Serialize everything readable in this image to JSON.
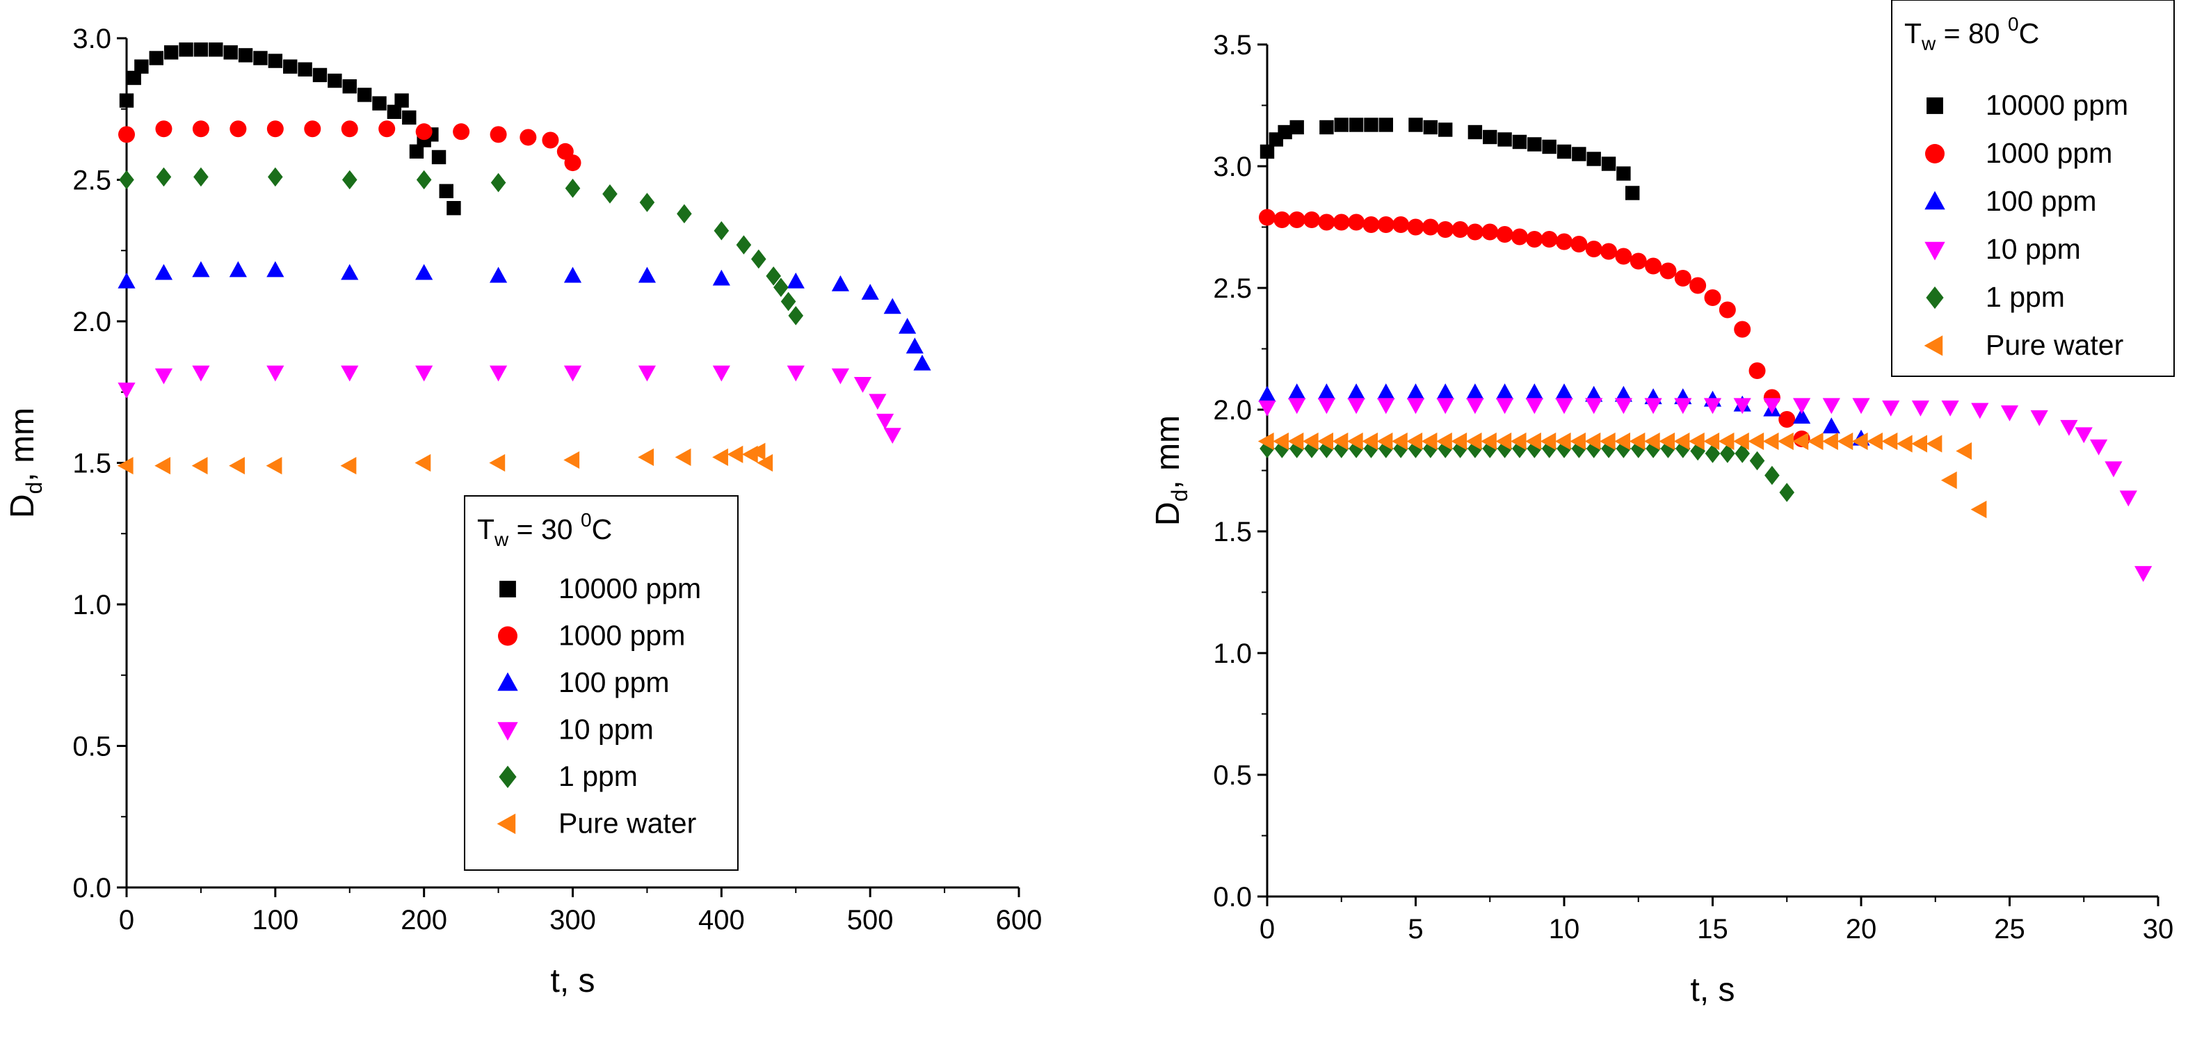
{
  "chart_data": [
    {
      "type": "scatter",
      "title": "",
      "xlabel": "t, s",
      "ylabel_main": "D",
      "ylabel_sub": "d",
      "ylabel_tail": ", mm",
      "xlim": [
        0,
        600
      ],
      "ylim": [
        0,
        3.0
      ],
      "xticks": [
        0,
        100,
        200,
        300,
        400,
        500,
        600
      ],
      "yticks": [
        0.0,
        0.5,
        1.0,
        1.5,
        2.0,
        2.5,
        3.0
      ],
      "xtick_labels": [
        "0",
        "100",
        "200",
        "300",
        "400",
        "500",
        "600"
      ],
      "ytick_labels": [
        "0.0",
        "0.5",
        "1.0",
        "1.5",
        "2.0",
        "2.5",
        "3.0"
      ],
      "legend_position": "lower-center",
      "legend_title_main": "T",
      "legend_title_sub": "w",
      "legend_title_mid": " = 30 ",
      "legend_title_sup": "0",
      "legend_title_tail": "C",
      "series": [
        {
          "name": "10000 ppm",
          "marker": "square",
          "color": "#000000",
          "x": [
            0,
            5,
            10,
            20,
            30,
            40,
            50,
            60,
            70,
            80,
            90,
            100,
            110,
            120,
            130,
            140,
            150,
            160,
            170,
            180,
            185,
            190,
            195,
            200,
            205,
            210,
            215,
            220
          ],
          "y": [
            2.78,
            2.86,
            2.9,
            2.93,
            2.95,
            2.96,
            2.96,
            2.96,
            2.95,
            2.94,
            2.93,
            2.92,
            2.9,
            2.89,
            2.87,
            2.85,
            2.83,
            2.8,
            2.77,
            2.74,
            2.78,
            2.72,
            2.6,
            2.64,
            2.66,
            2.58,
            2.46,
            2.4
          ]
        },
        {
          "name": "1000 ppm",
          "marker": "circle",
          "color": "#ff0000",
          "x": [
            0,
            25,
            50,
            75,
            100,
            125,
            150,
            175,
            200,
            225,
            250,
            270,
            285,
            295,
            300
          ],
          "y": [
            2.66,
            2.68,
            2.68,
            2.68,
            2.68,
            2.68,
            2.68,
            2.68,
            2.67,
            2.67,
            2.66,
            2.65,
            2.64,
            2.6,
            2.56
          ]
        },
        {
          "name": "100 ppm",
          "marker": "triangle-up",
          "color": "#0000ff",
          "x": [
            0,
            25,
            50,
            75,
            100,
            150,
            200,
            250,
            300,
            350,
            400,
            450,
            480,
            500,
            515,
            525,
            530,
            535
          ],
          "y": [
            2.14,
            2.17,
            2.18,
            2.18,
            2.18,
            2.17,
            2.17,
            2.16,
            2.16,
            2.16,
            2.15,
            2.14,
            2.13,
            2.1,
            2.05,
            1.98,
            1.91,
            1.85
          ]
        },
        {
          "name": "10 ppm",
          "marker": "triangle-down",
          "color": "#ff00ff",
          "x": [
            0,
            25,
            50,
            100,
            150,
            200,
            250,
            300,
            350,
            400,
            450,
            480,
            495,
            505,
            510,
            515
          ],
          "y": [
            1.76,
            1.81,
            1.82,
            1.82,
            1.82,
            1.82,
            1.82,
            1.82,
            1.82,
            1.82,
            1.82,
            1.81,
            1.78,
            1.72,
            1.65,
            1.6
          ]
        },
        {
          "name": "1 ppm",
          "marker": "diamond",
          "color": "#1a6e1a",
          "x": [
            0,
            25,
            50,
            100,
            150,
            200,
            250,
            300,
            325,
            350,
            375,
            400,
            415,
            425,
            435,
            440,
            445,
            450
          ],
          "y": [
            2.5,
            2.51,
            2.51,
            2.51,
            2.5,
            2.5,
            2.49,
            2.47,
            2.45,
            2.42,
            2.38,
            2.32,
            2.27,
            2.22,
            2.16,
            2.12,
            2.07,
            2.02
          ]
        },
        {
          "name": "Pure water",
          "marker": "triangle-left",
          "color": "#ff7f0e",
          "x": [
            0,
            25,
            50,
            75,
            100,
            150,
            200,
            250,
            300,
            350,
            375,
            400,
            410,
            420,
            425,
            430
          ],
          "y": [
            1.49,
            1.49,
            1.49,
            1.49,
            1.49,
            1.49,
            1.5,
            1.5,
            1.51,
            1.52,
            1.52,
            1.52,
            1.53,
            1.53,
            1.54,
            1.5
          ]
        }
      ]
    },
    {
      "type": "scatter",
      "title": "",
      "xlabel": "t, s",
      "ylabel_main": "D",
      "ylabel_sub": "d",
      "ylabel_tail": ", mm",
      "xlim": [
        0,
        30
      ],
      "ylim": [
        0,
        3.5
      ],
      "xticks": [
        0,
        5,
        10,
        15,
        20,
        25,
        30
      ],
      "yticks": [
        0.0,
        0.5,
        1.0,
        1.5,
        2.0,
        2.5,
        3.0,
        3.5
      ],
      "xtick_labels": [
        "0",
        "5",
        "10",
        "15",
        "20",
        "25",
        "30"
      ],
      "ytick_labels": [
        "0.0",
        "0.5",
        "1.0",
        "1.5",
        "2.0",
        "2.5",
        "3.0",
        "3.5"
      ],
      "legend_position": "top-right",
      "legend_title_main": "T",
      "legend_title_sub": "w",
      "legend_title_mid": " = 80 ",
      "legend_title_sup": "0",
      "legend_title_tail": "C",
      "series": [
        {
          "name": "10000 ppm",
          "marker": "square",
          "color": "#000000",
          "x": [
            0,
            0.3,
            0.6,
            1,
            2,
            2.5,
            3,
            3.5,
            4,
            5,
            5.5,
            6,
            7,
            7.5,
            8,
            8.5,
            9,
            9.5,
            10,
            10.5,
            11,
            11.5,
            12,
            12.3
          ],
          "y": [
            3.06,
            3.11,
            3.14,
            3.16,
            3.16,
            3.17,
            3.17,
            3.17,
            3.17,
            3.17,
            3.16,
            3.15,
            3.14,
            3.12,
            3.11,
            3.1,
            3.09,
            3.08,
            3.06,
            3.05,
            3.03,
            3.01,
            2.97,
            2.89
          ]
        },
        {
          "name": "1000 ppm",
          "marker": "circle",
          "color": "#ff0000",
          "x": [
            0,
            0.5,
            1,
            1.5,
            2,
            2.5,
            3,
            3.5,
            4,
            4.5,
            5,
            5.5,
            6,
            6.5,
            7,
            7.5,
            8,
            8.5,
            9,
            9.5,
            10,
            10.5,
            11,
            11.5,
            12,
            12.5,
            13,
            13.5,
            14,
            14.5,
            15,
            15.5,
            16,
            16.5,
            17,
            17.5,
            18
          ],
          "y": [
            2.79,
            2.78,
            2.78,
            2.78,
            2.77,
            2.77,
            2.77,
            2.76,
            2.76,
            2.76,
            2.75,
            2.75,
            2.74,
            2.74,
            2.73,
            2.73,
            2.72,
            2.71,
            2.7,
            2.7,
            2.69,
            2.68,
            2.66,
            2.65,
            2.63,
            2.61,
            2.59,
            2.57,
            2.54,
            2.51,
            2.46,
            2.41,
            2.33,
            2.16,
            2.05,
            1.96,
            1.88
          ]
        },
        {
          "name": "100 ppm",
          "marker": "triangle-up",
          "color": "#0000ff",
          "x": [
            0,
            1,
            2,
            3,
            4,
            5,
            6,
            7,
            8,
            9,
            10,
            11,
            12,
            13,
            14,
            15,
            16,
            17,
            18,
            19,
            20
          ],
          "y": [
            2.06,
            2.07,
            2.07,
            2.07,
            2.07,
            2.07,
            2.07,
            2.07,
            2.07,
            2.07,
            2.07,
            2.06,
            2.06,
            2.05,
            2.05,
            2.04,
            2.02,
            2.0,
            1.97,
            1.93,
            1.88
          ]
        },
        {
          "name": "10 ppm",
          "marker": "triangle-down",
          "color": "#ff00ff",
          "x": [
            0,
            1,
            2,
            3,
            4,
            5,
            6,
            7,
            8,
            9,
            10,
            11,
            12,
            13,
            14,
            15,
            16,
            17,
            18,
            19,
            20,
            21,
            22,
            23,
            24,
            25,
            26,
            27,
            27.5,
            28,
            28.5,
            29,
            29.5
          ],
          "y": [
            2.01,
            2.02,
            2.02,
            2.02,
            2.02,
            2.02,
            2.02,
            2.02,
            2.02,
            2.02,
            2.02,
            2.02,
            2.02,
            2.02,
            2.02,
            2.02,
            2.02,
            2.02,
            2.02,
            2.02,
            2.02,
            2.01,
            2.01,
            2.01,
            2.0,
            1.99,
            1.97,
            1.93,
            1.9,
            1.85,
            1.76,
            1.64,
            1.33
          ]
        },
        {
          "name": "1 ppm",
          "marker": "diamond",
          "color": "#1a6e1a",
          "x": [
            0,
            0.5,
            1,
            1.5,
            2,
            2.5,
            3,
            3.5,
            4,
            4.5,
            5,
            5.5,
            6,
            6.5,
            7,
            7.5,
            8,
            8.5,
            9,
            9.5,
            10,
            10.5,
            11,
            11.5,
            12,
            12.5,
            13,
            13.5,
            14,
            14.5,
            15,
            15.5,
            16,
            16.5,
            17,
            17.5
          ],
          "y": [
            1.84,
            1.84,
            1.84,
            1.84,
            1.84,
            1.84,
            1.84,
            1.84,
            1.84,
            1.84,
            1.84,
            1.84,
            1.84,
            1.84,
            1.84,
            1.84,
            1.84,
            1.84,
            1.84,
            1.84,
            1.84,
            1.84,
            1.84,
            1.84,
            1.84,
            1.84,
            1.84,
            1.84,
            1.84,
            1.83,
            1.82,
            1.82,
            1.82,
            1.79,
            1.73,
            1.66
          ]
        },
        {
          "name": "Pure water",
          "marker": "triangle-left",
          "color": "#ff7f0e",
          "x": [
            0,
            0.5,
            1,
            1.5,
            2,
            2.5,
            3,
            3.5,
            4,
            4.5,
            5,
            5.5,
            6,
            6.5,
            7,
            7.5,
            8,
            8.5,
            9,
            9.5,
            10,
            10.5,
            11,
            11.5,
            12,
            12.5,
            13,
            13.5,
            14,
            14.5,
            15,
            15.5,
            16,
            16.5,
            17,
            17.5,
            18,
            18.5,
            19,
            19.5,
            20,
            20.5,
            21,
            21.5,
            22,
            22.5,
            23,
            23.5,
            24
          ],
          "y": [
            1.87,
            1.87,
            1.87,
            1.87,
            1.87,
            1.87,
            1.87,
            1.87,
            1.87,
            1.87,
            1.87,
            1.87,
            1.87,
            1.87,
            1.87,
            1.87,
            1.87,
            1.87,
            1.87,
            1.87,
            1.87,
            1.87,
            1.87,
            1.87,
            1.87,
            1.87,
            1.87,
            1.87,
            1.87,
            1.87,
            1.87,
            1.87,
            1.87,
            1.87,
            1.87,
            1.87,
            1.87,
            1.87,
            1.87,
            1.87,
            1.87,
            1.87,
            1.87,
            1.86,
            1.86,
            1.86,
            1.71,
            1.83,
            1.59
          ]
        }
      ]
    }
  ]
}
